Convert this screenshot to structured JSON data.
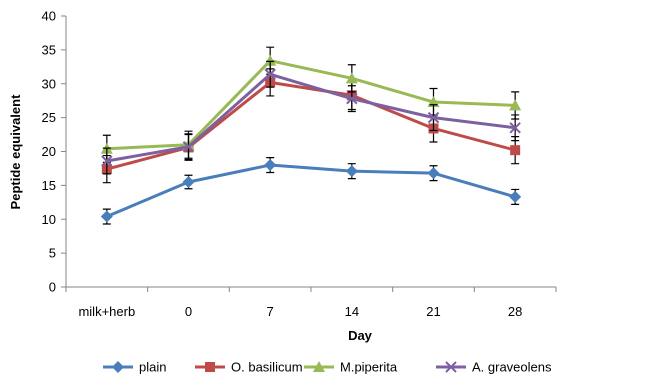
{
  "chart_data": {
    "type": "line",
    "xlabel": "Day",
    "ylabel": "Peptide equivalent",
    "categories": [
      "milk+herb",
      "0",
      "7",
      "14",
      "21",
      "28"
    ],
    "ylim": [
      0,
      40
    ],
    "yticks": [
      0,
      5,
      10,
      15,
      20,
      25,
      30,
      35,
      40
    ],
    "grid": false,
    "legend_position": "bottom",
    "series": [
      {
        "name": "plain",
        "color": "#4a7ebb",
        "marker": "diamond",
        "values": [
          10.4,
          15.5,
          18.0,
          17.1,
          16.8,
          13.3
        ],
        "errors": [
          1.1,
          1.0,
          1.1,
          1.1,
          1.1,
          1.1
        ]
      },
      {
        "name": "O. basilicum",
        "color": "#be4b48",
        "marker": "square",
        "values": [
          17.4,
          20.6,
          30.2,
          28.3,
          23.4,
          20.2
        ],
        "errors": [
          2.0,
          1.9,
          2.0,
          2.1,
          2.0,
          2.0
        ]
      },
      {
        "name": "M.piperita",
        "color": "#98b954",
        "marker": "triangle",
        "values": [
          20.4,
          21.0,
          33.4,
          30.8,
          27.3,
          26.8
        ],
        "errors": [
          2.0,
          2.0,
          2.0,
          2.0,
          2.0,
          2.0
        ]
      },
      {
        "name": "A. graveolens",
        "color": "#7d60a0",
        "marker": "x",
        "values": [
          18.6,
          20.7,
          31.4,
          27.8,
          25.0,
          23.5
        ],
        "errors": [
          1.9,
          1.9,
          1.9,
          1.9,
          1.9,
          1.9
        ]
      }
    ]
  }
}
